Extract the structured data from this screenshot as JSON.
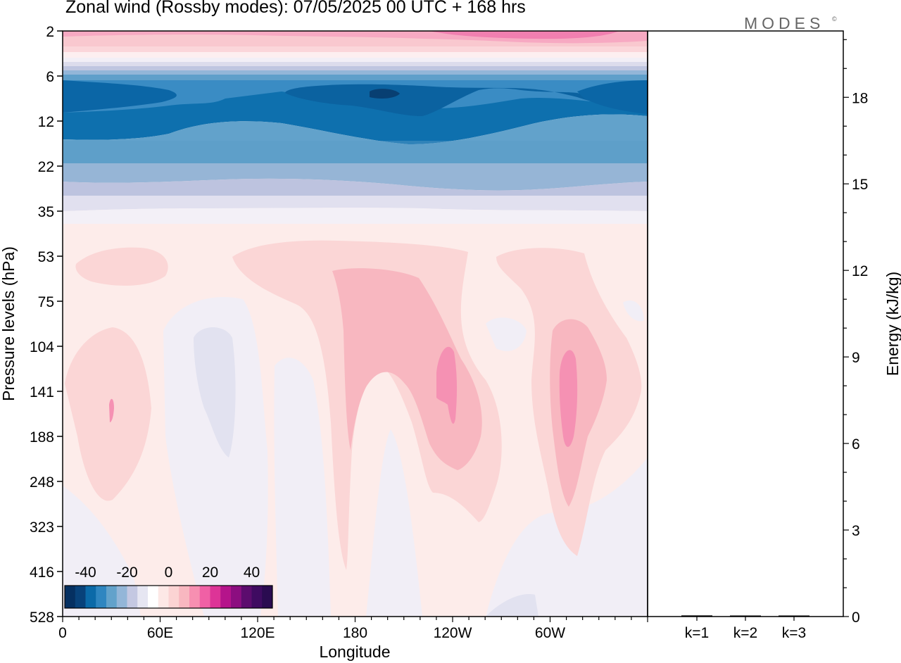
{
  "title": "Zonal wind (Rossby modes):  07/05/2025  00 UTC  + 168 hrs",
  "brand": "MODES",
  "brand_mark": "©",
  "chart_data": [
    {
      "type": "heatmap",
      "xlabel": "Longitude",
      "ylabel": "Pressure levels (hPa)",
      "x_ticks": [
        "0",
        "60E",
        "120E",
        "180",
        "120W",
        "60W"
      ],
      "x_tick_degrees": [
        0,
        60,
        120,
        180,
        240,
        300
      ],
      "x_range_degrees": [
        0,
        360
      ],
      "y_ticks": [
        "2",
        "6",
        "12",
        "22",
        "35",
        "53",
        "75",
        "104",
        "141",
        "188",
        "248",
        "323",
        "416",
        "528"
      ],
      "y_range_hpa": [
        2,
        528
      ],
      "colorbar": {
        "tick_labels": [
          "-40",
          "-20",
          "0",
          "20",
          "40"
        ],
        "tick_values": [
          -40,
          -20,
          0,
          20,
          40
        ],
        "levels": [
          -50,
          -45,
          -40,
          -35,
          -30,
          -25,
          -20,
          -15,
          -10,
          -5,
          0,
          5,
          10,
          15,
          20,
          25,
          30,
          35,
          40,
          45,
          50
        ],
        "colors": [
          "#053061",
          "#08427a",
          "#0b6aa8",
          "#2f86c0",
          "#62a2cb",
          "#93b6d8",
          "#c4c8e2",
          "#e6e6f2",
          "#ffffff",
          "#fde8e6",
          "#fbd3d3",
          "#f8b7c0",
          "#f78fb1",
          "#f060a5",
          "#dd3497",
          "#b5148b",
          "#8c0e80",
          "#5c0c6e",
          "#3f0b61",
          "#2a0b50"
        ]
      },
      "field_description_levels": {
        "stratosphere_top_2hPa": "weak westerly 5-15 m/s",
        "easterly_core_8hPa": "-30 to -40 m/s",
        "easterly_12_22hPa": "-15 to -30 m/s",
        "near_35hPa": "-5 to 0 m/s",
        "troposphere_jets_141hPa_longitudes_deg": [
          25,
          240,
          300
        ],
        "troposphere_jets_max": 20
      }
    },
    {
      "type": "bar",
      "categories": [
        "k=1",
        "k=2",
        "k=3"
      ],
      "values": [
        0.04,
        0.02,
        0.01
      ],
      "ylabel": "Energy (kJ/kg)",
      "y_ticks": [
        "0",
        "3",
        "6",
        "9",
        "12",
        "15",
        "18"
      ],
      "ylim": [
        0,
        20.3
      ]
    }
  ]
}
